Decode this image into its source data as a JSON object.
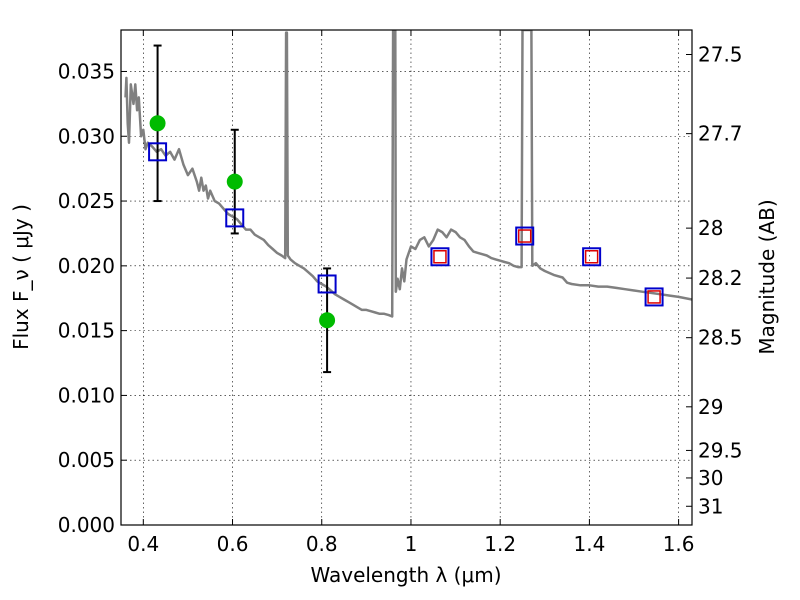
{
  "chart_data": {
    "type": "scatter",
    "xlabel": "Wavelength  λ (μm)",
    "ylabel": "Flux  F_ν  ( μJy )",
    "y2label": "Magnitude (AB)",
    "xlim": [
      0.35,
      1.63
    ],
    "ylim": [
      0.0,
      0.0382
    ],
    "grid": true,
    "x_ticks": [
      {
        "value": 0.4,
        "label": "0.4"
      },
      {
        "value": 0.6,
        "label": "0.6"
      },
      {
        "value": 0.8,
        "label": "0.8"
      },
      {
        "value": 1.0,
        "label": "1"
      },
      {
        "value": 1.2,
        "label": "1.2"
      },
      {
        "value": 1.4,
        "label": "1.4"
      },
      {
        "value": 1.6,
        "label": "1.6"
      }
    ],
    "y_ticks": [
      {
        "value": 0.0,
        "label": "0.000"
      },
      {
        "value": 0.005,
        "label": "0.005"
      },
      {
        "value": 0.01,
        "label": "0.010"
      },
      {
        "value": 0.015,
        "label": "0.015"
      },
      {
        "value": 0.02,
        "label": "0.020"
      },
      {
        "value": 0.025,
        "label": "0.025"
      },
      {
        "value": 0.03,
        "label": "0.030"
      },
      {
        "value": 0.035,
        "label": "0.035"
      }
    ],
    "y2_ticks": [
      {
        "value": 27.5,
        "label": "27.5"
      },
      {
        "value": 27.7,
        "label": "27.7"
      },
      {
        "value": 28,
        "label": "28"
      },
      {
        "value": 28.2,
        "label": "28.2"
      },
      {
        "value": 28.5,
        "label": "28.5"
      },
      {
        "value": 29,
        "label": "29"
      },
      {
        "value": 29.5,
        "label": "29.5"
      },
      {
        "value": 30,
        "label": "30"
      },
      {
        "value": 31,
        "label": "31"
      }
    ],
    "series": [
      {
        "kind": "line",
        "color": "#808080",
        "points": [
          [
            0.36,
            0.033
          ],
          [
            0.362,
            0.0345
          ],
          [
            0.365,
            0.031
          ],
          [
            0.368,
            0.0295
          ],
          [
            0.372,
            0.034
          ],
          [
            0.378,
            0.0325
          ],
          [
            0.382,
            0.034
          ],
          [
            0.386,
            0.032
          ],
          [
            0.39,
            0.033
          ],
          [
            0.395,
            0.03
          ],
          [
            0.4,
            0.0305
          ],
          [
            0.405,
            0.029
          ],
          [
            0.41,
            0.0295
          ],
          [
            0.42,
            0.0292
          ],
          [
            0.43,
            0.0288
          ],
          [
            0.44,
            0.029
          ],
          [
            0.45,
            0.0285
          ],
          [
            0.46,
            0.0288
          ],
          [
            0.47,
            0.0282
          ],
          [
            0.48,
            0.029
          ],
          [
            0.49,
            0.0278
          ],
          [
            0.5,
            0.027
          ],
          [
            0.51,
            0.0275
          ],
          [
            0.52,
            0.0265
          ],
          [
            0.525,
            0.0258
          ],
          [
            0.53,
            0.0268
          ],
          [
            0.535,
            0.0258
          ],
          [
            0.54,
            0.0262
          ],
          [
            0.545,
            0.0252
          ],
          [
            0.55,
            0.0258
          ],
          [
            0.56,
            0.025
          ],
          [
            0.57,
            0.0248
          ],
          [
            0.58,
            0.0244
          ],
          [
            0.59,
            0.024
          ],
          [
            0.6,
            0.0238
          ],
          [
            0.61,
            0.0236
          ],
          [
            0.62,
            0.0232
          ],
          [
            0.63,
            0.0228
          ],
          [
            0.64,
            0.0228
          ],
          [
            0.65,
            0.0224
          ],
          [
            0.66,
            0.0222
          ],
          [
            0.67,
            0.022
          ],
          [
            0.68,
            0.0216
          ],
          [
            0.69,
            0.0213
          ],
          [
            0.7,
            0.021
          ],
          [
            0.71,
            0.0208
          ],
          [
            0.718,
            0.0206
          ],
          [
            0.72,
            0.038
          ],
          [
            0.722,
            0.038
          ],
          [
            0.724,
            0.0208
          ],
          [
            0.73,
            0.0205
          ],
          [
            0.74,
            0.0202
          ],
          [
            0.75,
            0.02
          ],
          [
            0.76,
            0.0198
          ],
          [
            0.77,
            0.0195
          ],
          [
            0.78,
            0.0192
          ],
          [
            0.79,
            0.0188
          ],
          [
            0.8,
            0.0186
          ],
          [
            0.81,
            0.0184
          ],
          [
            0.82,
            0.0181
          ],
          [
            0.83,
            0.0178
          ],
          [
            0.84,
            0.0176
          ],
          [
            0.85,
            0.0174
          ],
          [
            0.86,
            0.0172
          ],
          [
            0.87,
            0.017
          ],
          [
            0.88,
            0.0168
          ],
          [
            0.89,
            0.0166
          ],
          [
            0.9,
            0.0166
          ],
          [
            0.91,
            0.0165
          ],
          [
            0.92,
            0.0164
          ],
          [
            0.93,
            0.0163
          ],
          [
            0.94,
            0.0163
          ],
          [
            0.95,
            0.0162
          ],
          [
            0.958,
            0.0161
          ],
          [
            0.96,
            0.0382
          ],
          [
            0.965,
            0.0382
          ],
          [
            0.966,
            0.018
          ],
          [
            0.97,
            0.019
          ],
          [
            0.975,
            0.0182
          ],
          [
            0.98,
            0.0198
          ],
          [
            0.985,
            0.0188
          ],
          [
            0.99,
            0.0205
          ],
          [
            1.0,
            0.0215
          ],
          [
            1.01,
            0.0213
          ],
          [
            1.02,
            0.022
          ],
          [
            1.03,
            0.0222
          ],
          [
            1.04,
            0.0215
          ],
          [
            1.05,
            0.022
          ],
          [
            1.06,
            0.0228
          ],
          [
            1.07,
            0.0226
          ],
          [
            1.08,
            0.0222
          ],
          [
            1.09,
            0.0228
          ],
          [
            1.1,
            0.0226
          ],
          [
            1.11,
            0.0222
          ],
          [
            1.12,
            0.022
          ],
          [
            1.13,
            0.0215
          ],
          [
            1.14,
            0.0211
          ],
          [
            1.15,
            0.021
          ],
          [
            1.16,
            0.0209
          ],
          [
            1.17,
            0.0208
          ],
          [
            1.18,
            0.0206
          ],
          [
            1.19,
            0.0205
          ],
          [
            1.2,
            0.0204
          ],
          [
            1.21,
            0.0203
          ],
          [
            1.22,
            0.0202
          ],
          [
            1.23,
            0.02
          ],
          [
            1.24,
            0.0199
          ],
          [
            1.248,
            0.0199
          ],
          [
            1.25,
            0.0382
          ],
          [
            1.27,
            0.0382
          ],
          [
            1.272,
            0.02
          ],
          [
            1.28,
            0.0202
          ],
          [
            1.29,
            0.0198
          ],
          [
            1.3,
            0.0196
          ],
          [
            1.32,
            0.0193
          ],
          [
            1.34,
            0.0191
          ],
          [
            1.35,
            0.0187
          ],
          [
            1.36,
            0.0186
          ],
          [
            1.38,
            0.0185
          ],
          [
            1.4,
            0.0185
          ],
          [
            1.42,
            0.0184
          ],
          [
            1.44,
            0.0184
          ],
          [
            1.46,
            0.0183
          ],
          [
            1.48,
            0.0182
          ],
          [
            1.5,
            0.0181
          ],
          [
            1.52,
            0.018
          ],
          [
            1.54,
            0.0179
          ],
          [
            1.56,
            0.0178
          ],
          [
            1.58,
            0.0177
          ],
          [
            1.6,
            0.0176
          ],
          [
            1.63,
            0.0174
          ]
        ]
      },
      {
        "kind": "points",
        "marker": "circle",
        "color": "#00bb00",
        "points": [
          [
            0.432,
            0.031
          ],
          [
            0.605,
            0.0265
          ],
          [
            0.812,
            0.0158
          ]
        ],
        "errors": [
          0.006,
          0.004,
          0.004
        ]
      },
      {
        "kind": "points",
        "marker": "square",
        "color": "#0000cc",
        "points": [
          [
            0.432,
            0.0288
          ],
          [
            0.605,
            0.0237
          ],
          [
            0.812,
            0.0186
          ],
          [
            1.065,
            0.0207
          ],
          [
            1.255,
            0.0223
          ],
          [
            1.405,
            0.0207
          ],
          [
            1.545,
            0.0176
          ]
        ]
      },
      {
        "kind": "points",
        "marker": "square",
        "color": "#dd0000",
        "points": [
          [
            1.065,
            0.0207
          ],
          [
            1.255,
            0.0223
          ],
          [
            1.405,
            0.0207
          ],
          [
            1.545,
            0.0176
          ]
        ]
      }
    ]
  }
}
